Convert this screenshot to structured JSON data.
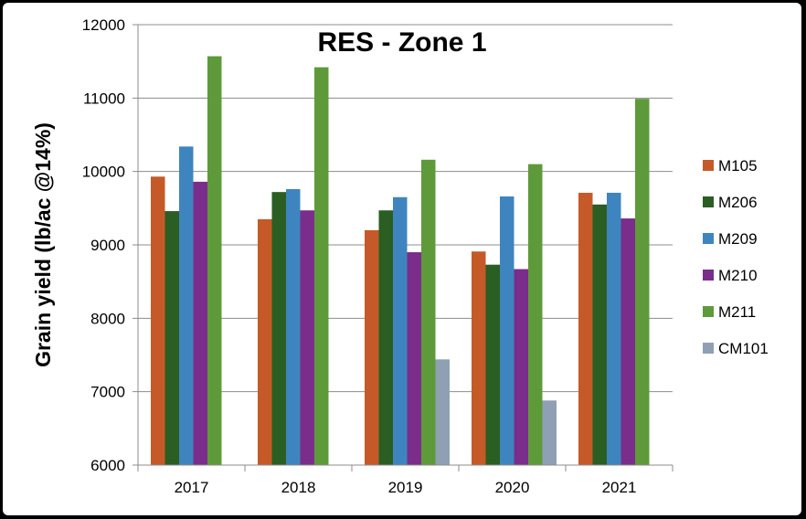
{
  "chart_data": {
    "type": "bar",
    "title": "RES - Zone 1",
    "xlabel": "",
    "ylabel": "Grain yield (lb/ac @14%)",
    "ylim": [
      6000,
      12000
    ],
    "yticks": [
      6000,
      7000,
      8000,
      9000,
      10000,
      11000,
      12000
    ],
    "categories": [
      "2017",
      "2018",
      "2019",
      "2020",
      "2021"
    ],
    "grid": true,
    "legend_position": "right",
    "series": [
      {
        "name": "M105",
        "color": "#C55A28",
        "values": [
          9930,
          9350,
          9200,
          8910,
          9710
        ]
      },
      {
        "name": "M206",
        "color": "#2A5E22",
        "values": [
          9460,
          9720,
          9470,
          8730,
          9550
        ]
      },
      {
        "name": "M209",
        "color": "#3E85BF",
        "values": [
          10340,
          9760,
          9650,
          9660,
          9710
        ]
      },
      {
        "name": "M210",
        "color": "#7A2D8A",
        "values": [
          9860,
          9470,
          8900,
          8670,
          9360
        ]
      },
      {
        "name": "M211",
        "color": "#5E9A3A",
        "values": [
          11570,
          11420,
          10160,
          10100,
          10990
        ]
      },
      {
        "name": "CM101",
        "color": "#8FA0B4",
        "values": [
          null,
          null,
          7440,
          6880,
          null
        ]
      }
    ]
  }
}
